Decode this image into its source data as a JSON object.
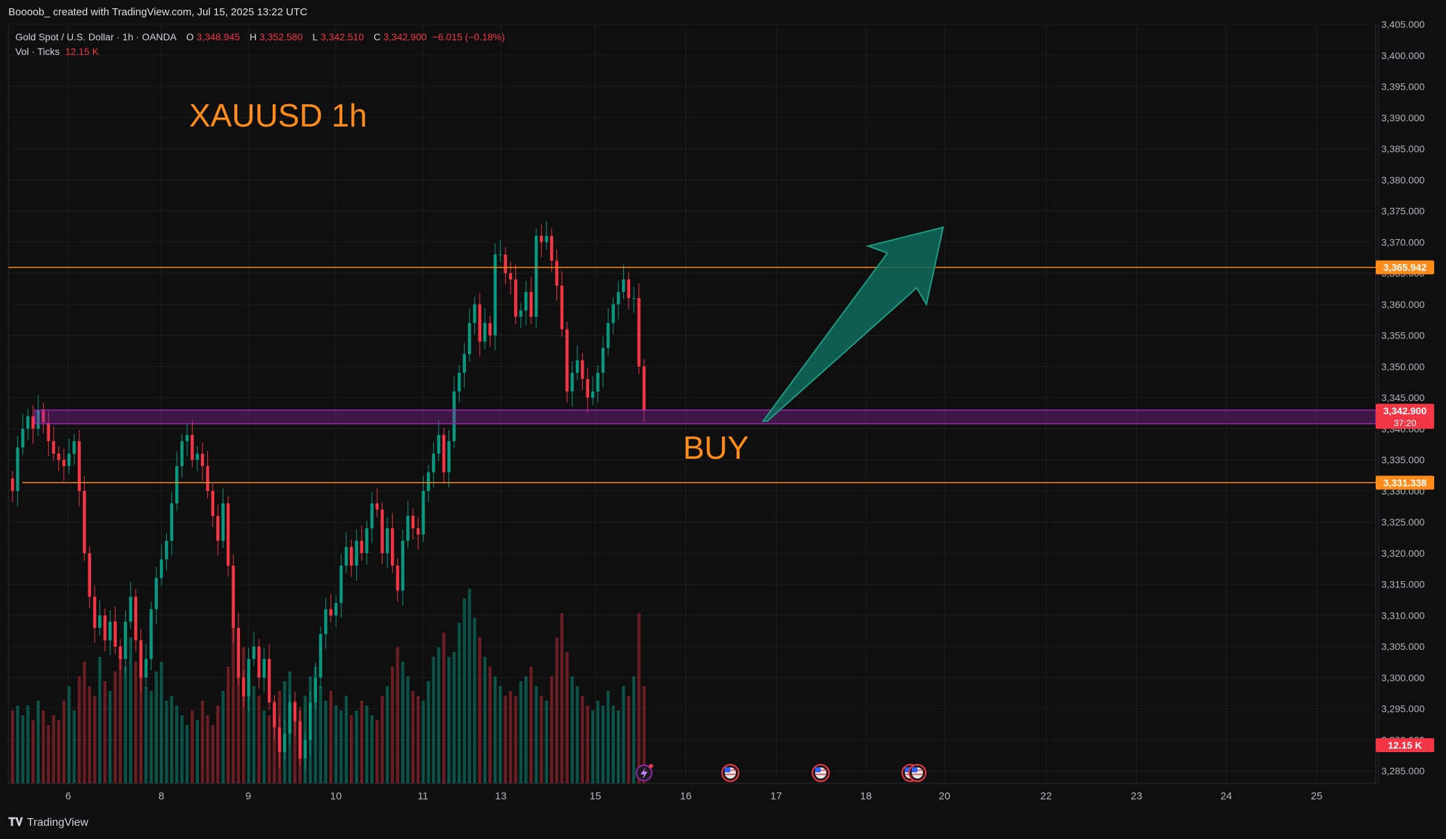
{
  "header": {
    "author_line": "Boooob_ created with TradingView.com, Jul 15, 2025 13:22 UTC"
  },
  "legend": {
    "symbol": "Gold Spot / U.S. Dollar · 1h · OANDA",
    "o_label": "O",
    "o_value": "3,348.945",
    "h_label": "H",
    "h_value": "3,352.580",
    "l_label": "L",
    "l_value": "3,342.510",
    "c_label": "C",
    "c_value": "3,342.900",
    "change": "−6.015 (−0.18%)",
    "vol_label": "Vol · Ticks",
    "vol_value": "12.15 K"
  },
  "annotations": {
    "title": "XAUUSD 1h",
    "buy": "BUY"
  },
  "footer": {
    "brand": "TradingView"
  },
  "colors": {
    "background": "#0f0f0f",
    "up": "#089981",
    "down": "#f23645",
    "orange": "#ff8c1a",
    "zone": "#9c27b0",
    "arrow_fill": "#0f6b5c",
    "arrow_stroke": "#1e9c84",
    "grid": "#1e1e1e"
  },
  "chart_data": {
    "type": "candlestick",
    "instrument": "XAUUSD",
    "timeframe": "1h",
    "y_axis": {
      "ylim": [
        3283.0,
        3405.0
      ],
      "tick_labels": [
        "3,285.000",
        "3,290.000",
        "3,295.000",
        "3,300.000",
        "3,305.000",
        "3,310.000",
        "3,315.000",
        "3,320.000",
        "3,325.000",
        "3,330.000",
        "3,335.000",
        "3,340.000",
        "3,345.000",
        "3,350.000",
        "3,355.000",
        "3,360.000",
        "3,365.000",
        "3,370.000",
        "3,375.000",
        "3,380.000",
        "3,385.000",
        "3,390.000",
        "3,395.000",
        "3,400.000",
        "3,405.000"
      ]
    },
    "x_axis": {
      "tick_labels": [
        "6",
        "8",
        "9",
        "10",
        "11",
        "13",
        "15",
        "16",
        "17",
        "18",
        "20",
        "22",
        "23",
        "24",
        "25"
      ]
    },
    "horizontal_lines": [
      {
        "price": 3365.942,
        "label": "3,365.942",
        "color": "#ff8c1a"
      },
      {
        "price": 3331.338,
        "label": "3,331.338",
        "color": "#ff8c1a"
      }
    ],
    "zone": {
      "low": 3340.8,
      "high": 3343.0,
      "color": "#9c27b0"
    },
    "current_price": {
      "label": "3,342.900",
      "countdown": "37:20",
      "price": 3342.9
    },
    "volume_label": "12.15 K",
    "closes": [
      3330,
      3337,
      3340,
      3342,
      3340,
      3343,
      3341,
      3338,
      3336,
      3335,
      3334,
      3336,
      3338,
      3330,
      3320,
      3313,
      3308,
      3310,
      3306,
      3309,
      3305,
      3303,
      3309,
      3313,
      3306,
      3300,
      3303,
      3311,
      3316,
      3319,
      3322,
      3328,
      3334,
      3338,
      3339,
      3335,
      3336,
      3334,
      3330,
      3326,
      3322,
      3328,
      3318,
      3308,
      3300,
      3297,
      3303,
      3305,
      3300,
      3303,
      3296,
      3292,
      3288,
      3291,
      3296,
      3293,
      3287,
      3290,
      3296,
      3300,
      3307,
      3311,
      3310,
      3312,
      3318,
      3321,
      3318,
      3322,
      3320,
      3324,
      3328,
      3327,
      3320,
      3324,
      3318,
      3314,
      3322,
      3326,
      3324,
      3323,
      3330,
      3333,
      3336,
      3339,
      3333,
      3338,
      3346,
      3349,
      3352,
      3357,
      3360,
      3354,
      3357,
      3355,
      3368,
      3368,
      3365,
      3364,
      3358,
      3359,
      3362,
      3358,
      3371,
      3370,
      3371,
      3367,
      3363,
      3356,
      3346,
      3349,
      3351,
      3348,
      3345,
      3346,
      3349,
      3353,
      3357,
      3360,
      3362,
      3364,
      3361,
      3361,
      3350,
      3342.9
    ],
    "volumes": [
      15,
      16,
      14,
      16,
      13,
      17,
      15,
      12,
      14,
      13,
      17,
      20,
      15,
      22,
      25,
      20,
      18,
      26,
      21,
      19,
      23,
      27,
      24,
      30,
      25,
      22,
      20,
      19,
      23,
      25,
      17,
      18,
      16,
      14,
      12,
      15,
      13,
      17,
      14,
      12,
      16,
      19,
      24,
      32,
      26,
      28,
      22,
      20,
      18,
      15,
      14,
      17,
      19,
      21,
      23,
      17,
      15,
      18,
      22,
      24,
      20,
      17,
      19,
      16,
      15,
      18,
      14,
      15,
      17,
      16,
      14,
      13,
      18,
      20,
      24,
      28,
      25,
      22,
      19,
      18,
      17,
      21,
      26,
      28,
      31,
      26,
      27,
      33,
      38,
      40,
      34,
      30,
      26,
      24,
      22,
      20,
      18,
      19,
      18,
      21,
      22,
      24,
      20,
      18,
      17,
      22,
      30,
      35,
      27,
      22,
      20,
      18,
      16,
      15,
      17,
      16,
      19,
      16,
      15,
      20,
      18,
      22,
      35,
      20
    ]
  }
}
